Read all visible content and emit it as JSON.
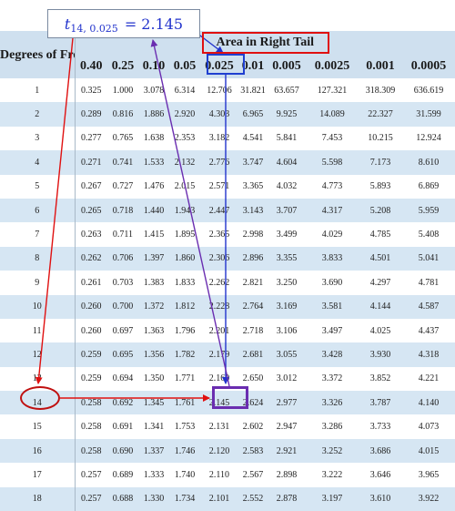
{
  "header": {
    "df_label": "Degrees of Freedom",
    "area_title": "Area in Right Tail",
    "columns": [
      "0.40",
      "0.25",
      "0.10",
      "0.05",
      "0.025",
      "0.01",
      "0.005",
      "0.0025",
      "0.001",
      "0.0005"
    ]
  },
  "rows": [
    {
      "df": "1",
      "values": [
        "0.325",
        "1.000",
        "3.078",
        "6.314",
        "12.706",
        "31.821",
        "63.657",
        "127.321",
        "318.309",
        "636.619"
      ]
    },
    {
      "df": "2",
      "values": [
        "0.289",
        "0.816",
        "1.886",
        "2.920",
        "4.303",
        "6.965",
        "9.925",
        "14.089",
        "22.327",
        "31.599"
      ]
    },
    {
      "df": "3",
      "values": [
        "0.277",
        "0.765",
        "1.638",
        "2.353",
        "3.182",
        "4.541",
        "5.841",
        "7.453",
        "10.215",
        "12.924"
      ]
    },
    {
      "df": "4",
      "values": [
        "0.271",
        "0.741",
        "1.533",
        "2.132",
        "2.776",
        "3.747",
        "4.604",
        "5.598",
        "7.173",
        "8.610"
      ]
    },
    {
      "df": "5",
      "values": [
        "0.267",
        "0.727",
        "1.476",
        "2.015",
        "2.571",
        "3.365",
        "4.032",
        "4.773",
        "5.893",
        "6.869"
      ]
    },
    {
      "df": "6",
      "values": [
        "0.265",
        "0.718",
        "1.440",
        "1.943",
        "2.447",
        "3.143",
        "3.707",
        "4.317",
        "5.208",
        "5.959"
      ]
    },
    {
      "df": "7",
      "values": [
        "0.263",
        "0.711",
        "1.415",
        "1.895",
        "2.365",
        "2.998",
        "3.499",
        "4.029",
        "4.785",
        "5.408"
      ]
    },
    {
      "df": "8",
      "values": [
        "0.262",
        "0.706",
        "1.397",
        "1.860",
        "2.306",
        "2.896",
        "3.355",
        "3.833",
        "4.501",
        "5.041"
      ]
    },
    {
      "df": "9",
      "values": [
        "0.261",
        "0.703",
        "1.383",
        "1.833",
        "2.262",
        "2.821",
        "3.250",
        "3.690",
        "4.297",
        "4.781"
      ]
    },
    {
      "df": "10",
      "values": [
        "0.260",
        "0.700",
        "1.372",
        "1.812",
        "2.228",
        "2.764",
        "3.169",
        "3.581",
        "4.144",
        "4.587"
      ]
    },
    {
      "df": "11",
      "values": [
        "0.260",
        "0.697",
        "1.363",
        "1.796",
        "2.201",
        "2.718",
        "3.106",
        "3.497",
        "4.025",
        "4.437"
      ]
    },
    {
      "df": "12",
      "values": [
        "0.259",
        "0.695",
        "1.356",
        "1.782",
        "2.179",
        "2.681",
        "3.055",
        "3.428",
        "3.930",
        "4.318"
      ]
    },
    {
      "df": "13",
      "values": [
        "0.259",
        "0.694",
        "1.350",
        "1.771",
        "2.160",
        "2.650",
        "3.012",
        "3.372",
        "3.852",
        "4.221"
      ]
    },
    {
      "df": "14",
      "values": [
        "0.258",
        "0.692",
        "1.345",
        "1.761",
        "2.145",
        "2.624",
        "2.977",
        "3.326",
        "3.787",
        "4.140"
      ]
    },
    {
      "df": "15",
      "values": [
        "0.258",
        "0.691",
        "1.341",
        "1.753",
        "2.131",
        "2.602",
        "2.947",
        "3.286",
        "3.733",
        "4.073"
      ]
    },
    {
      "df": "16",
      "values": [
        "0.258",
        "0.690",
        "1.337",
        "1.746",
        "2.120",
        "2.583",
        "2.921",
        "3.252",
        "3.686",
        "4.015"
      ]
    },
    {
      "df": "17",
      "values": [
        "0.257",
        "0.689",
        "1.333",
        "1.740",
        "2.110",
        "2.567",
        "2.898",
        "3.222",
        "3.646",
        "3.965"
      ]
    },
    {
      "df": "18",
      "values": [
        "0.257",
        "0.688",
        "1.330",
        "1.734",
        "2.101",
        "2.552",
        "2.878",
        "3.197",
        "3.610",
        "3.922"
      ]
    }
  ],
  "annotation": {
    "formula_var": "t",
    "formula_sub": "14, 0.025",
    "formula_eq": "= 2.145",
    "highlight_df": "14",
    "highlight_col": "0.025",
    "colors": {
      "area_box": "#e01010",
      "col_box": "#1f3fd0",
      "val_box": "#6a2db0",
      "row_mark": "#c01010",
      "arrow_red": "#e01010",
      "arrow_blue": "#2233cc",
      "arrow_purple": "#6a2db0"
    }
  }
}
